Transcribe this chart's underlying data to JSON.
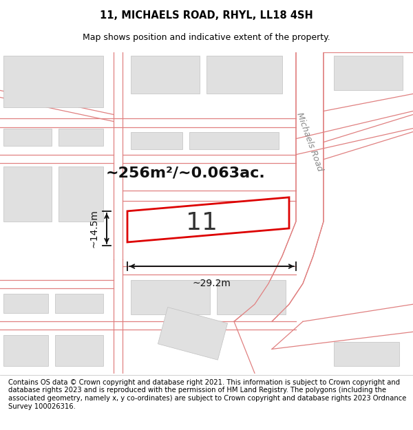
{
  "title_line1": "11, MICHAELS ROAD, RHYL, LL18 4SH",
  "title_line2": "Map shows position and indicative extent of the property.",
  "footer_text": "Contains OS data © Crown copyright and database right 2021. This information is subject to Crown copyright and database rights 2023 and is reproduced with the permission of HM Land Registry. The polygons (including the associated geometry, namely x, y co-ordinates) are subject to Crown copyright and database rights 2023 Ordnance Survey 100026316.",
  "bg_color": "#f0f0f0",
  "map_bg": "#f0f0f0",
  "road_line_color": "#e08080",
  "road_fill_color": "#ffffff",
  "building_fill_color": "#e0e0e0",
  "building_edge_color": "#c8c8c8",
  "plot_outline_color": "#dd0000",
  "plot_fill_color": "#ffffff",
  "plot_label": "11",
  "area_text": "~256m²/~0.063ac.",
  "width_text": "~29.2m",
  "height_text": "~14.5m",
  "road_label": "Michaels Road",
  "title_fontsize": 10.5,
  "subtitle_fontsize": 9,
  "footer_fontsize": 7.2
}
